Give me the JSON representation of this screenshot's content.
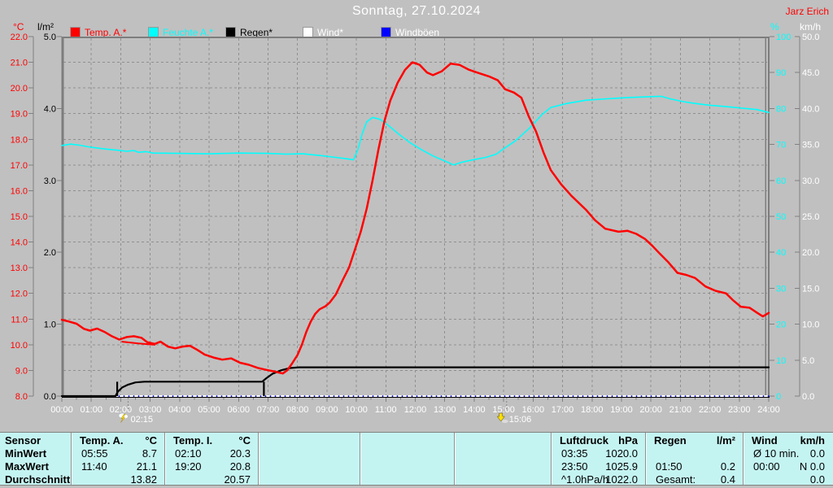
{
  "header": {
    "title": "Sonntag, 27.10.2024",
    "station": "Jarz Erich",
    "station_color": "#ff0000"
  },
  "legend": {
    "items": [
      {
        "id": "temp-a",
        "label": "Temp. A.*",
        "swatch_color": "#ff0000",
        "text_color": "#ff0000"
      },
      {
        "id": "feuchte-a",
        "label": "Feuchte A.*",
        "swatch_color": "#00ffff",
        "text_color": "#00ffff"
      },
      {
        "id": "regen",
        "label": "Regen*",
        "swatch_color": "#000000",
        "text_color": "#000000"
      },
      {
        "id": "wind",
        "label": "Wind*",
        "swatch_color": "#ffffff",
        "text_color": "#ffffff"
      },
      {
        "id": "windboeen",
        "label": "Windböen",
        "swatch_color": "#0000ff",
        "text_color": "#ffffff"
      }
    ]
  },
  "chart_data": {
    "type": "line",
    "title": "Sonntag, 27.10.2024",
    "grid": true,
    "x": {
      "range_hours": [
        0,
        24
      ],
      "ticks": [
        "00:00",
        "01:00",
        "02:00",
        "03:00",
        "04:00",
        "05:00",
        "06:00",
        "07:00",
        "08:00",
        "09:00",
        "10:00",
        "11:00",
        "12:00",
        "13:00",
        "14:00",
        "15:00",
        "16:00",
        "17:00",
        "18:00",
        "19:00",
        "20:00",
        "21:00",
        "22:00",
        "23:00",
        "24:00"
      ]
    },
    "axes": {
      "temp": {
        "unit": "°C",
        "color": "#ff0000",
        "range": [
          8.0,
          22.0
        ],
        "ticks": [
          "22.0",
          "21.0",
          "20.0",
          "19.0",
          "18.0",
          "17.0",
          "16.0",
          "15.0",
          "14.0",
          "13.0",
          "12.0",
          "11.0",
          "10.0",
          "9.0",
          "8.0"
        ]
      },
      "rain": {
        "unit": "l/m²",
        "color": "#000000",
        "range": [
          0.0,
          5.0
        ],
        "ticks": [
          "5.0",
          "4.0",
          "3.0",
          "2.0",
          "1.0",
          "0.0"
        ]
      },
      "humidity": {
        "unit": "%",
        "color": "#00ffff",
        "range": [
          0,
          100
        ],
        "ticks": [
          "100",
          "90",
          "80",
          "70",
          "60",
          "50",
          "40",
          "30",
          "20",
          "10",
          "0"
        ]
      },
      "wind": {
        "unit": "km/h",
        "color": "#ffffff",
        "range": [
          0.0,
          50.0
        ],
        "ticks": [
          "50.0",
          "45.0",
          "40.0",
          "35.0",
          "30.0",
          "25.0",
          "20.0",
          "15.0",
          "10.0",
          "5.0",
          "0.0"
        ]
      }
    },
    "series": [
      {
        "name": "Windböen",
        "axis": "wind",
        "color": "#0000ff",
        "width": 1.5,
        "points": [
          [
            0,
            0
          ],
          [
            24,
            0
          ]
        ]
      },
      {
        "name": "Wind*",
        "axis": "wind",
        "color": "#ffffff",
        "width": 2,
        "dash": "3,3",
        "points": [
          [
            0,
            0
          ],
          [
            24,
            0
          ]
        ]
      },
      {
        "name": "Regen*",
        "axis": "rain",
        "color": "#000000",
        "width": 2.2,
        "points": [
          [
            0,
            0
          ],
          [
            1.82,
            0
          ],
          [
            1.9,
            0.06
          ],
          [
            2.05,
            0.12
          ],
          [
            2.25,
            0.16
          ],
          [
            2.5,
            0.19
          ],
          [
            2.8,
            0.2
          ],
          [
            6.8,
            0.2
          ],
          [
            6.95,
            0.25
          ],
          [
            7.15,
            0.31
          ],
          [
            7.45,
            0.36
          ],
          [
            7.75,
            0.39
          ],
          [
            8.05,
            0.4
          ],
          [
            24,
            0.4
          ]
        ]
      },
      {
        "name": "Regen* Ereignis-Spitzen",
        "axis": "rain",
        "color": "#000000",
        "width": 2.2,
        "type": "spikes",
        "points": [
          [
            1.88,
            0.2
          ],
          [
            6.86,
            0.2
          ]
        ]
      },
      {
        "name": "Feuchte A.*",
        "axis": "humidity",
        "color": "#00ffff",
        "width": 1.6,
        "points": [
          [
            0,
            69.7
          ],
          [
            0.3,
            70.1
          ],
          [
            0.6,
            69.8
          ],
          [
            1.0,
            69.2
          ],
          [
            1.5,
            68.7
          ],
          [
            1.9,
            68.4
          ],
          [
            2.2,
            68.1
          ],
          [
            2.45,
            68.3
          ],
          [
            2.6,
            67.8
          ],
          [
            2.85,
            68.0
          ],
          [
            3.1,
            67.6
          ],
          [
            4,
            67.5
          ],
          [
            5,
            67.4
          ],
          [
            6,
            67.6
          ],
          [
            7,
            67.5
          ],
          [
            7.6,
            67.3
          ],
          [
            8.2,
            67.4
          ],
          [
            8.8,
            66.9
          ],
          [
            9.3,
            66.4
          ],
          [
            9.7,
            66.0
          ],
          [
            9.9,
            65.7
          ],
          [
            10.05,
            68.5
          ],
          [
            10.2,
            73.0
          ],
          [
            10.35,
            76.3
          ],
          [
            10.55,
            77.5
          ],
          [
            10.8,
            77.0
          ],
          [
            11.1,
            75.2
          ],
          [
            11.45,
            72.8
          ],
          [
            11.8,
            70.6
          ],
          [
            12.2,
            68.6
          ],
          [
            12.6,
            66.8
          ],
          [
            13.0,
            65.4
          ],
          [
            13.3,
            64.3
          ],
          [
            13.6,
            65.1
          ],
          [
            14.0,
            65.8
          ],
          [
            14.4,
            66.4
          ],
          [
            14.75,
            67.3
          ],
          [
            15.0,
            68.8
          ],
          [
            15.4,
            71.0
          ],
          [
            15.9,
            74.7
          ],
          [
            16.3,
            78.3
          ],
          [
            16.6,
            80.3
          ],
          [
            17.15,
            81.4
          ],
          [
            17.8,
            82.3
          ],
          [
            18.5,
            82.7
          ],
          [
            19.15,
            83.0
          ],
          [
            20.0,
            83.3
          ],
          [
            20.35,
            83.4
          ],
          [
            20.65,
            82.7
          ],
          [
            21.1,
            81.9
          ],
          [
            21.5,
            81.4
          ],
          [
            22.0,
            80.9
          ],
          [
            22.6,
            80.5
          ],
          [
            23.1,
            80.1
          ],
          [
            23.6,
            79.7
          ],
          [
            24,
            78.9
          ]
        ]
      },
      {
        "name": "Temp. A.*",
        "axis": "temp",
        "color": "#ff0000",
        "width": 2.5,
        "points": [
          [
            0,
            10.97
          ],
          [
            0.25,
            10.9
          ],
          [
            0.5,
            10.82
          ],
          [
            0.75,
            10.62
          ],
          [
            0.95,
            10.55
          ],
          [
            1.2,
            10.63
          ],
          [
            1.45,
            10.5
          ],
          [
            1.7,
            10.33
          ],
          [
            1.95,
            10.2
          ],
          [
            2.2,
            10.3
          ],
          [
            2.45,
            10.33
          ],
          [
            2.7,
            10.27
          ],
          [
            2.9,
            10.1
          ],
          [
            3.15,
            10.03
          ],
          [
            3.35,
            10.12
          ],
          [
            3.6,
            9.93
          ],
          [
            3.85,
            9.86
          ],
          [
            4.1,
            9.93
          ],
          [
            4.35,
            9.96
          ],
          [
            4.6,
            9.8
          ],
          [
            4.85,
            9.62
          ],
          [
            5.15,
            9.5
          ],
          [
            5.45,
            9.42
          ],
          [
            5.75,
            9.47
          ],
          [
            6.05,
            9.3
          ],
          [
            6.35,
            9.22
          ],
          [
            6.65,
            9.1
          ],
          [
            6.95,
            9.02
          ],
          [
            7.25,
            8.95
          ],
          [
            7.5,
            8.88
          ],
          [
            7.65,
            9.0
          ],
          [
            7.8,
            9.24
          ],
          [
            8.0,
            9.6
          ],
          [
            8.15,
            10.0
          ],
          [
            8.3,
            10.5
          ],
          [
            8.45,
            10.9
          ],
          [
            8.6,
            11.2
          ],
          [
            8.75,
            11.38
          ],
          [
            8.95,
            11.5
          ],
          [
            9.1,
            11.65
          ],
          [
            9.3,
            11.95
          ],
          [
            9.55,
            12.55
          ],
          [
            9.75,
            13.0
          ],
          [
            9.95,
            13.7
          ],
          [
            10.15,
            14.4
          ],
          [
            10.35,
            15.3
          ],
          [
            10.55,
            16.4
          ],
          [
            10.75,
            17.6
          ],
          [
            10.95,
            18.7
          ],
          [
            11.15,
            19.5
          ],
          [
            11.4,
            20.2
          ],
          [
            11.65,
            20.7
          ],
          [
            11.9,
            21.0
          ],
          [
            12.15,
            20.9
          ],
          [
            12.4,
            20.6
          ],
          [
            12.6,
            20.5
          ],
          [
            12.9,
            20.65
          ],
          [
            13.2,
            20.95
          ],
          [
            13.5,
            20.9
          ],
          [
            13.8,
            20.72
          ],
          [
            14.1,
            20.6
          ],
          [
            14.5,
            20.45
          ],
          [
            14.8,
            20.3
          ],
          [
            15.05,
            19.95
          ],
          [
            15.35,
            19.82
          ],
          [
            15.6,
            19.62
          ],
          [
            15.85,
            18.9
          ],
          [
            16.1,
            18.3
          ],
          [
            16.35,
            17.5
          ],
          [
            16.6,
            16.8
          ],
          [
            16.95,
            16.25
          ],
          [
            17.3,
            15.8
          ],
          [
            17.8,
            15.25
          ],
          [
            18.1,
            14.85
          ],
          [
            18.45,
            14.52
          ],
          [
            18.9,
            14.4
          ],
          [
            19.2,
            14.44
          ],
          [
            19.5,
            14.32
          ],
          [
            19.8,
            14.12
          ],
          [
            20.05,
            13.85
          ],
          [
            20.3,
            13.55
          ],
          [
            20.6,
            13.2
          ],
          [
            20.9,
            12.8
          ],
          [
            21.2,
            12.72
          ],
          [
            21.5,
            12.6
          ],
          [
            21.85,
            12.27
          ],
          [
            22.2,
            12.1
          ],
          [
            22.55,
            12.0
          ],
          [
            22.8,
            11.72
          ],
          [
            23.05,
            11.48
          ],
          [
            23.35,
            11.44
          ],
          [
            23.6,
            11.25
          ],
          [
            23.8,
            11.1
          ],
          [
            24,
            11.24
          ]
        ]
      },
      {
        "name": "Temp. A.* Doppelspur",
        "axis": "temp",
        "color": "#ff0000",
        "width": 2,
        "points": [
          [
            2.05,
            10.12
          ],
          [
            2.6,
            10.05
          ],
          [
            3.15,
            10.0
          ]
        ]
      }
    ],
    "annotations": [
      {
        "time": "02:15",
        "hour": 2.25,
        "icon": "storm-icon"
      },
      {
        "time": "15:06",
        "hour": 15.1,
        "icon": "sunset-icon"
      }
    ]
  },
  "summary_table": {
    "row_labels": [
      "Sensor",
      "MinWert",
      "MaxWert",
      "Durchschnitt"
    ],
    "columns": [
      {
        "name": "Temp. A.",
        "unit": "°C",
        "rows": [
          {
            "left": "05:55",
            "right": "8.7"
          },
          {
            "left": "11:40",
            "right": "21.1"
          },
          {
            "left": "",
            "right": "13.82"
          }
        ]
      },
      {
        "name": "Temp. I.",
        "unit": "°C",
        "rows": [
          {
            "left": "02:10",
            "right": "20.3"
          },
          {
            "left": "19:20",
            "right": "20.8"
          },
          {
            "left": "",
            "right": "20.57"
          }
        ]
      },
      {
        "name": "",
        "unit": "",
        "rows": [
          {
            "left": "",
            "right": ""
          },
          {
            "left": "",
            "right": ""
          },
          {
            "left": "",
            "right": ""
          }
        ]
      },
      {
        "name": "",
        "unit": "",
        "rows": [
          {
            "left": "",
            "right": ""
          },
          {
            "left": "",
            "right": ""
          },
          {
            "left": "",
            "right": ""
          }
        ]
      },
      {
        "name": "",
        "unit": "",
        "rows": [
          {
            "left": "",
            "right": ""
          },
          {
            "left": "",
            "right": ""
          },
          {
            "left": "",
            "right": ""
          }
        ]
      },
      {
        "name": "Luftdruck",
        "unit": "hPa",
        "rows": [
          {
            "left": "03:35",
            "right": "1020.0"
          },
          {
            "left": "23:50",
            "right": "1025.9"
          },
          {
            "left": "^1.0hPa/h",
            "right": "1022.0"
          }
        ]
      },
      {
        "name": "Regen",
        "unit": "l/m²",
        "rows": [
          {
            "left": "",
            "right": ""
          },
          {
            "left": "01:50",
            "right": "0.2"
          },
          {
            "left": "Gesamt:",
            "right": "0.4"
          }
        ]
      },
      {
        "name": "Wind",
        "unit": "km/h",
        "rows": [
          {
            "left": "Ø 10 min.",
            "right": "0.0"
          },
          {
            "left": "00:00",
            "right": "N 0.0"
          },
          {
            "left": "",
            "right": "0.0"
          }
        ]
      }
    ]
  }
}
